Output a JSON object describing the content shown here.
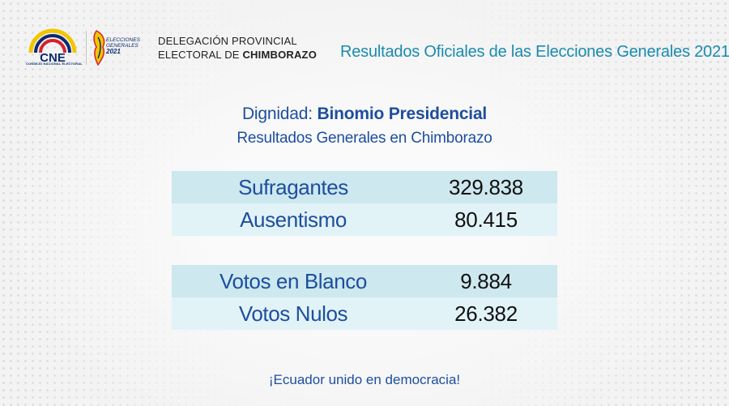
{
  "header": {
    "cne_logo_text": "CNE",
    "cne_logo_subtext": "CONSEJO NACIONAL ELECTORAL",
    "elections_logo_line1": "ELECCIONES",
    "elections_logo_line2": "GENERALES",
    "elections_logo_year": "2021",
    "delegation_line1": "DELEGACIÓN PROVINCIAL",
    "delegation_line2_prefix": "ELECTORAL DE ",
    "delegation_line2_bold": "CHIMBORAZO",
    "official_title": "Resultados Oficiales de las Elecciones Generales 2021"
  },
  "main": {
    "dignity_label": "Dignidad: ",
    "dignity_value": "Binomio Presidencial",
    "subtitle": "Resultados Generales en Chimborazo",
    "table1": [
      {
        "label": "Sufragantes",
        "value": "329.838"
      },
      {
        "label": "Ausentismo",
        "value": "80.415"
      }
    ],
    "table2": [
      {
        "label": "Votos en Blanco",
        "value": "9.884"
      },
      {
        "label": "Votos Nulos",
        "value": "26.382"
      }
    ]
  },
  "footer": {
    "slogan": "¡Ecuador unido en democracia!"
  },
  "colors": {
    "title_blue": "#1a8bb0",
    "text_blue": "#1d4e9e",
    "row_dark": "#cde8ee",
    "row_light": "#e2f3f8",
    "logo_yellow": "#f2c500",
    "logo_blue": "#0b2a6e",
    "logo_red": "#d6212a"
  },
  "icons": [
    "cne-logo-icon",
    "elecciones-2021-logo-icon"
  ]
}
